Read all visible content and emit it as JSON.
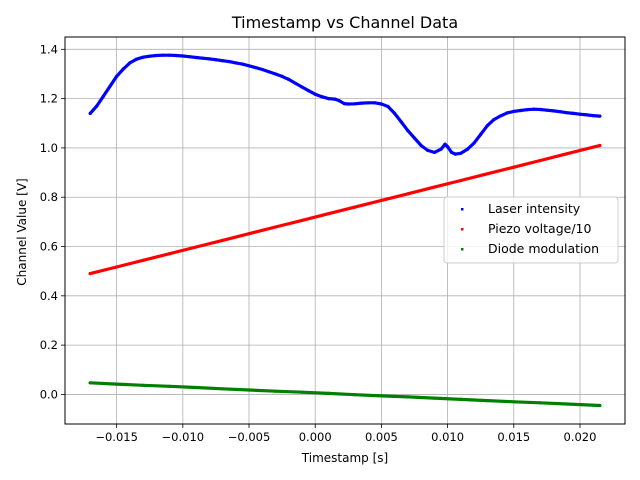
{
  "chart_data": {
    "type": "scatter",
    "title": "Timestamp vs Channel Data",
    "xlabel": "Timestamp [s]",
    "ylabel": "Channel Value [V]",
    "xlim": [
      -0.0189,
      0.0234
    ],
    "ylim": [
      -0.12,
      1.45
    ],
    "xticks": [
      -0.015,
      -0.01,
      -0.005,
      0.0,
      0.005,
      0.01,
      0.015,
      0.02
    ],
    "xtick_labels": [
      "−0.015",
      "−0.010",
      "−0.005",
      "0.000",
      "0.005",
      "0.010",
      "0.015",
      "0.020"
    ],
    "yticks": [
      0.0,
      0.2,
      0.4,
      0.6,
      0.8,
      1.0,
      1.2,
      1.4
    ],
    "ytick_labels": [
      "0.0",
      "0.2",
      "0.4",
      "0.6",
      "0.8",
      "1.0",
      "1.2",
      "1.4"
    ],
    "grid": true,
    "legend_position": "center-right",
    "series": [
      {
        "name": "Laser intensity",
        "color": "#0000ff",
        "x": [
          -0.017,
          -0.0165,
          -0.016,
          -0.0155,
          -0.015,
          -0.0145,
          -0.014,
          -0.0135,
          -0.013,
          -0.0125,
          -0.012,
          -0.0115,
          -0.011,
          -0.0105,
          -0.01,
          -0.0095,
          -0.009,
          -0.0085,
          -0.008,
          -0.0075,
          -0.007,
          -0.0065,
          -0.006,
          -0.0055,
          -0.005,
          -0.0045,
          -0.004,
          -0.0035,
          -0.003,
          -0.0025,
          -0.002,
          -0.0015,
          -0.001,
          -0.0005,
          0.0,
          0.0005,
          0.001,
          0.0015,
          0.0018,
          0.0022,
          0.0025,
          0.003,
          0.0035,
          0.004,
          0.0045,
          0.005,
          0.0055,
          0.006,
          0.0065,
          0.007,
          0.0075,
          0.008,
          0.0085,
          0.009,
          0.0095,
          0.0098,
          0.01,
          0.0103,
          0.0106,
          0.011,
          0.0115,
          0.012,
          0.0125,
          0.013,
          0.0135,
          0.014,
          0.0145,
          0.015,
          0.0155,
          0.016,
          0.0165,
          0.017,
          0.0175,
          0.018,
          0.0185,
          0.019,
          0.0195,
          0.02,
          0.0205,
          0.021,
          0.0215
        ],
        "y": [
          1.14,
          1.17,
          1.21,
          1.25,
          1.29,
          1.32,
          1.345,
          1.36,
          1.368,
          1.372,
          1.375,
          1.376,
          1.376,
          1.375,
          1.373,
          1.37,
          1.367,
          1.364,
          1.361,
          1.358,
          1.354,
          1.35,
          1.345,
          1.34,
          1.333,
          1.326,
          1.318,
          1.309,
          1.3,
          1.29,
          1.278,
          1.262,
          1.247,
          1.232,
          1.218,
          1.208,
          1.2,
          1.198,
          1.192,
          1.18,
          1.178,
          1.179,
          1.182,
          1.183,
          1.183,
          1.178,
          1.168,
          1.14,
          1.105,
          1.07,
          1.04,
          1.01,
          0.99,
          0.982,
          0.995,
          1.015,
          1.005,
          0.982,
          0.975,
          0.978,
          0.995,
          1.02,
          1.055,
          1.09,
          1.115,
          1.13,
          1.142,
          1.148,
          1.152,
          1.155,
          1.157,
          1.156,
          1.153,
          1.15,
          1.147,
          1.143,
          1.14,
          1.137,
          1.134,
          1.131,
          1.129
        ]
      },
      {
        "name": "Piezo voltage/10",
        "color": "#ff0000",
        "x": [
          -0.017,
          -0.015,
          -0.013,
          -0.011,
          -0.009,
          -0.007,
          -0.005,
          -0.003,
          -0.001,
          0.001,
          0.003,
          0.005,
          0.007,
          0.009,
          0.011,
          0.013,
          0.015,
          0.017,
          0.019,
          0.0215
        ],
        "y": [
          0.49,
          0.517,
          0.544,
          0.571,
          0.598,
          0.625,
          0.652,
          0.679,
          0.706,
          0.733,
          0.76,
          0.787,
          0.814,
          0.841,
          0.868,
          0.895,
          0.922,
          0.949,
          0.976,
          1.01
        ]
      },
      {
        "name": "Diode modulation",
        "color": "#008000",
        "x": [
          -0.017,
          -0.015,
          -0.013,
          -0.011,
          -0.009,
          -0.007,
          -0.005,
          -0.003,
          -0.001,
          0.001,
          0.003,
          0.005,
          0.007,
          0.009,
          0.011,
          0.013,
          0.015,
          0.017,
          0.019,
          0.0215
        ],
        "y": [
          0.047,
          0.042,
          0.037,
          0.033,
          0.028,
          0.023,
          0.018,
          0.013,
          0.009,
          0.004,
          -0.001,
          -0.006,
          -0.01,
          -0.015,
          -0.02,
          -0.025,
          -0.03,
          -0.034,
          -0.039,
          -0.045
        ]
      }
    ]
  }
}
